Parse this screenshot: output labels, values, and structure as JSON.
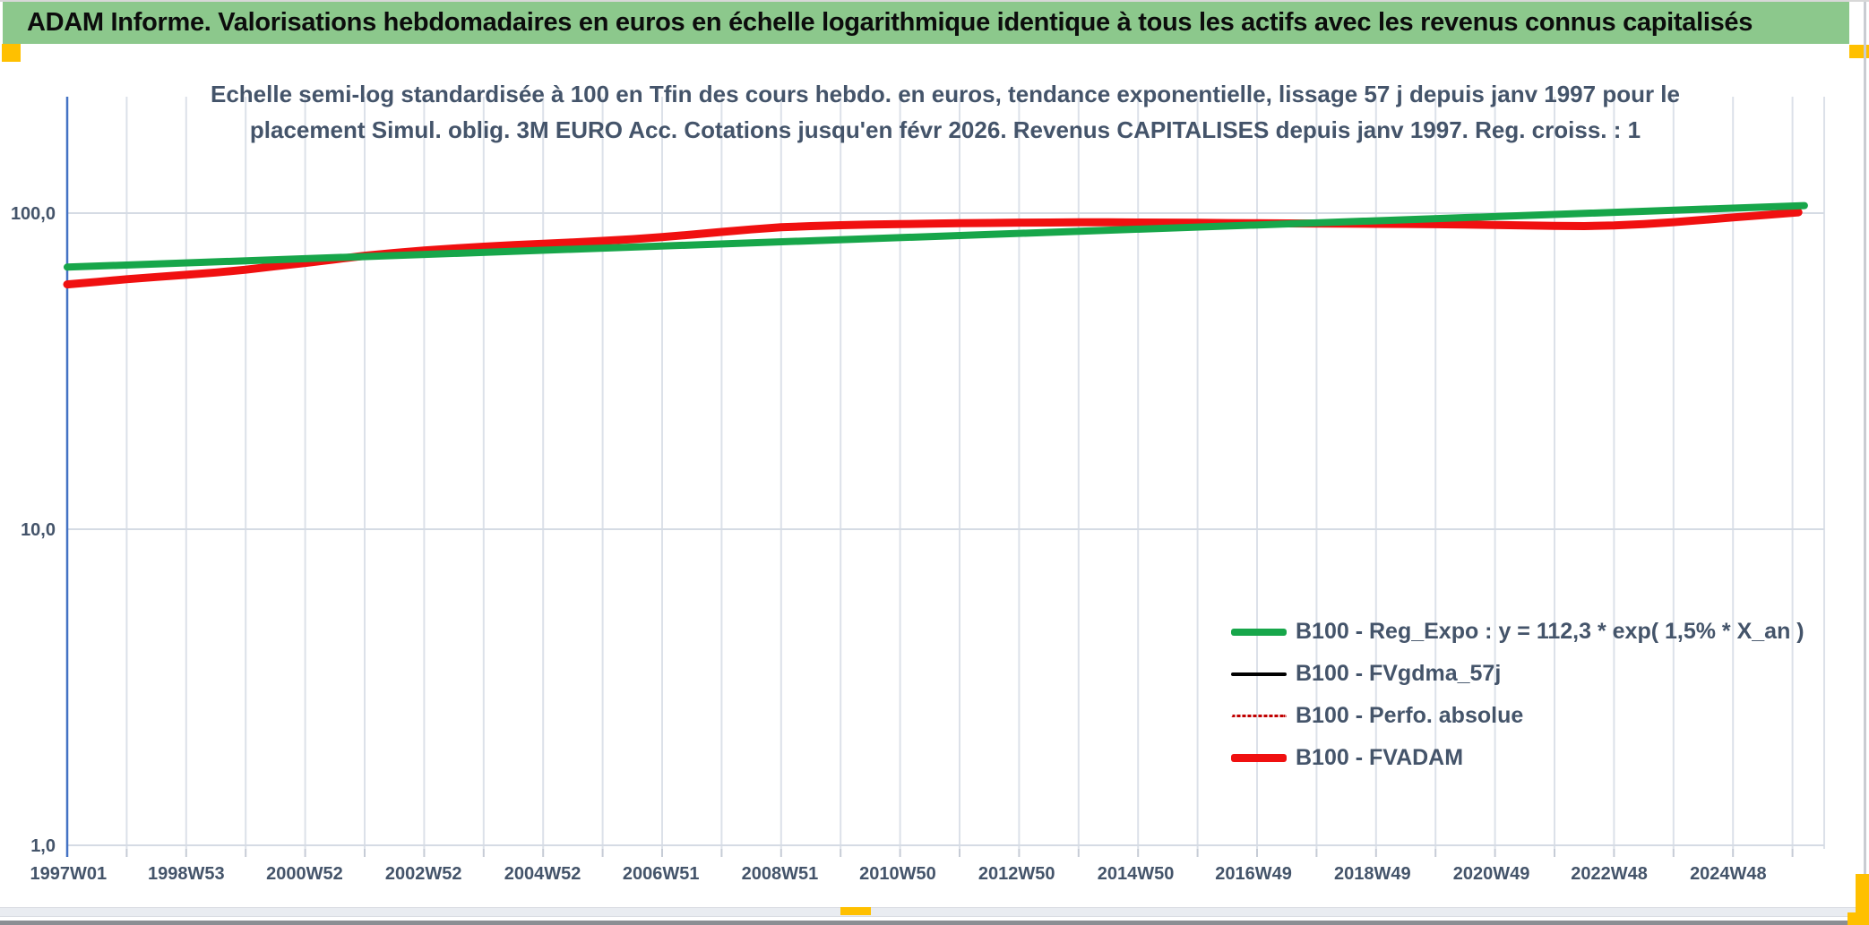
{
  "header": {
    "title": "ADAM Informe. Valorisations hebdomadaires en euros en échelle logarithmique identique à tous les actifs avec les revenus connus capitalisés",
    "background_color": "#8cc88c",
    "accent_color": "#ffc000"
  },
  "chart": {
    "title_line1": "Echelle semi-log standardisée à 100 en Tfin des cours hebdo. en euros, tendance exponentielle, lissage 57 j depuis janv 1997 pour le",
    "title_line2": "placement Simul. oblig. 3M EURO Acc. Cotations jusqu'en févr 2026. Revenus CAPITALISES depuis janv 1997. Reg. croiss. : 1",
    "text_color": "#44546a",
    "axis_color": "#4472c4",
    "gridline_color": "#dce1e9"
  },
  "chart_data": {
    "type": "line",
    "title": "Echelle semi-log standardisée à 100 en Tfin des cours hebdo. en euros",
    "xlabel": "",
    "ylabel": "",
    "y_axis": {
      "scale": "log",
      "ticks": [
        {
          "label": "100,0",
          "value": 100
        },
        {
          "label": "10,0",
          "value": 10
        },
        {
          "label": "1,0",
          "value": 1
        }
      ],
      "range": [
        1,
        233
      ]
    },
    "x_axis": {
      "range_years": [
        1997.0,
        2026.55
      ],
      "gridline_every_years": 1,
      "ticks": [
        {
          "label": "1997W01",
          "year": 1997.02
        },
        {
          "label": "1998W53",
          "year": 1999.0
        },
        {
          "label": "2000W52",
          "year": 2000.99
        },
        {
          "label": "2002W52",
          "year": 2002.99
        },
        {
          "label": "2004W52",
          "year": 2004.99
        },
        {
          "label": "2006W51",
          "year": 2006.98
        },
        {
          "label": "2008W51",
          "year": 2008.98
        },
        {
          "label": "2010W50",
          "year": 2010.96
        },
        {
          "label": "2012W50",
          "year": 2012.96
        },
        {
          "label": "2014W50",
          "year": 2014.96
        },
        {
          "label": "2016W49",
          "year": 2016.94
        },
        {
          "label": "2018W49",
          "year": 2018.94
        },
        {
          "label": "2020W49",
          "year": 2020.94
        },
        {
          "label": "2022W48",
          "year": 2022.92
        },
        {
          "label": "2024W48",
          "year": 2024.92
        }
      ]
    },
    "legend_position": "inside-bottom-right",
    "grid": true,
    "series": [
      {
        "name": "B100 - Reg_Expo : y = 112,3 * exp( 1,5% *  X_an )",
        "color": "#17a64a",
        "width": 8,
        "style": "solid",
        "sample_height": 8,
        "points": [
          [
            1997.0,
            67.5
          ],
          [
            2026.2,
            105.6
          ]
        ]
      },
      {
        "name": "B100 - FVgdma_57j",
        "color": "#000000",
        "width": 3.5,
        "style": "solid",
        "sample_height": 4,
        "points": [
          [
            1997.0,
            59.5
          ],
          [
            1998,
            61.8
          ],
          [
            1999,
            63.8
          ],
          [
            2000,
            66.2
          ],
          [
            2000.5,
            67.9
          ],
          [
            2001,
            69.6
          ],
          [
            2001.5,
            71.4
          ],
          [
            2002,
            73.3
          ],
          [
            2002.5,
            74.8
          ],
          [
            2003,
            76.2
          ],
          [
            2003.5,
            77.3
          ],
          [
            2004,
            78.3
          ],
          [
            2004.5,
            79.2
          ],
          [
            2005,
            80.0
          ],
          [
            2005.5,
            80.8
          ],
          [
            2006,
            81.7
          ],
          [
            2006.5,
            82.7
          ],
          [
            2007,
            84.0
          ],
          [
            2007.5,
            85.5
          ],
          [
            2008,
            87.2
          ],
          [
            2008.5,
            88.8
          ],
          [
            2009,
            90.2
          ],
          [
            2009.5,
            91.0
          ],
          [
            2010,
            91.6
          ],
          [
            2010.5,
            92.0
          ],
          [
            2011,
            92.3
          ],
          [
            2012,
            92.9
          ],
          [
            2013,
            93.3
          ],
          [
            2014,
            93.5
          ],
          [
            2015,
            93.4
          ],
          [
            2016,
            93.2
          ],
          [
            2017,
            92.9
          ],
          [
            2018,
            92.7
          ],
          [
            2019,
            92.5
          ],
          [
            2020,
            92.2
          ],
          [
            2020.5,
            92.0
          ],
          [
            2021,
            91.7
          ],
          [
            2021.5,
            91.4
          ],
          [
            2022,
            91.1
          ],
          [
            2022.5,
            91.0
          ],
          [
            2023,
            91.4
          ],
          [
            2023.5,
            92.3
          ],
          [
            2024,
            93.6
          ],
          [
            2024.5,
            95.2
          ],
          [
            2025,
            96.9
          ],
          [
            2025.5,
            98.5
          ],
          [
            2026.1,
            100.6
          ]
        ]
      },
      {
        "name": "B100 - Perfo. absolue",
        "color": "#c00000",
        "width": 2.5,
        "style": "dotted",
        "sample_height": 3,
        "points": [
          [
            1997.0,
            59.5
          ],
          [
            1998,
            61.8
          ],
          [
            1999,
            63.8
          ],
          [
            2000,
            66.2
          ],
          [
            2000.5,
            67.9
          ],
          [
            2001,
            69.6
          ],
          [
            2001.5,
            71.4
          ],
          [
            2002,
            73.3
          ],
          [
            2002.5,
            74.8
          ],
          [
            2003,
            76.2
          ],
          [
            2003.5,
            77.3
          ],
          [
            2004,
            78.3
          ],
          [
            2004.5,
            79.2
          ],
          [
            2005,
            80.0
          ],
          [
            2005.5,
            80.8
          ],
          [
            2006,
            81.7
          ],
          [
            2006.5,
            82.7
          ],
          [
            2007,
            84.0
          ],
          [
            2007.5,
            85.5
          ],
          [
            2008,
            87.2
          ],
          [
            2008.5,
            88.8
          ],
          [
            2009,
            90.2
          ],
          [
            2009.5,
            91.0
          ],
          [
            2010,
            91.6
          ],
          [
            2010.5,
            92.0
          ],
          [
            2011,
            92.3
          ],
          [
            2012,
            92.9
          ],
          [
            2013,
            93.3
          ],
          [
            2014,
            93.5
          ],
          [
            2015,
            93.4
          ],
          [
            2016,
            93.2
          ],
          [
            2017,
            92.9
          ],
          [
            2018,
            92.7
          ],
          [
            2019,
            92.5
          ],
          [
            2020,
            92.2
          ],
          [
            2020.5,
            92.0
          ],
          [
            2021,
            91.7
          ],
          [
            2021.5,
            91.4
          ],
          [
            2022,
            91.1
          ],
          [
            2022.5,
            91.0
          ],
          [
            2023,
            91.4
          ],
          [
            2023.5,
            92.3
          ],
          [
            2024,
            93.6
          ],
          [
            2024.5,
            95.2
          ],
          [
            2025,
            96.9
          ],
          [
            2025.5,
            98.5
          ],
          [
            2026.1,
            100.6
          ]
        ]
      },
      {
        "name": "B100 - FVADAM",
        "color": "#f01010",
        "width": 9,
        "style": "solid",
        "sample_height": 9,
        "points": [
          [
            1997.0,
            59.5
          ],
          [
            1997.5,
            60.6
          ],
          [
            1998,
            61.8
          ],
          [
            1998.5,
            62.8
          ],
          [
            1999,
            63.8
          ],
          [
            1999.5,
            64.9
          ],
          [
            2000,
            66.2
          ],
          [
            2000.5,
            67.9
          ],
          [
            2001,
            69.6
          ],
          [
            2001.5,
            71.4
          ],
          [
            2002,
            73.3
          ],
          [
            2002.5,
            74.8
          ],
          [
            2003,
            76.2
          ],
          [
            2003.5,
            77.3
          ],
          [
            2004,
            78.3
          ],
          [
            2004.5,
            79.2
          ],
          [
            2005,
            80.0
          ],
          [
            2005.5,
            80.8
          ],
          [
            2006,
            81.7
          ],
          [
            2006.5,
            82.7
          ],
          [
            2007,
            84.0
          ],
          [
            2007.5,
            85.5
          ],
          [
            2008,
            87.2
          ],
          [
            2008.5,
            88.8
          ],
          [
            2009,
            90.2
          ],
          [
            2009.5,
            91.0
          ],
          [
            2010,
            91.6
          ],
          [
            2010.5,
            92.0
          ],
          [
            2011,
            92.3
          ],
          [
            2011.5,
            92.6
          ],
          [
            2012,
            92.9
          ],
          [
            2012.5,
            93.1
          ],
          [
            2013,
            93.3
          ],
          [
            2013.5,
            93.4
          ],
          [
            2014,
            93.5
          ],
          [
            2014.5,
            93.5
          ],
          [
            2015,
            93.4
          ],
          [
            2015.5,
            93.3
          ],
          [
            2016,
            93.2
          ],
          [
            2016.5,
            93.0
          ],
          [
            2017,
            92.9
          ],
          [
            2017.5,
            92.8
          ],
          [
            2018,
            92.7
          ],
          [
            2018.5,
            92.6
          ],
          [
            2019,
            92.5
          ],
          [
            2019.5,
            92.4
          ],
          [
            2020,
            92.2
          ],
          [
            2020.5,
            92.0
          ],
          [
            2021,
            91.7
          ],
          [
            2021.5,
            91.4
          ],
          [
            2022,
            91.1
          ],
          [
            2022.5,
            91.0
          ],
          [
            2023,
            91.4
          ],
          [
            2023.5,
            92.3
          ],
          [
            2024,
            93.6
          ],
          [
            2024.5,
            95.2
          ],
          [
            2025,
            96.9
          ],
          [
            2025.5,
            98.5
          ],
          [
            2026.1,
            100.6
          ]
        ]
      }
    ]
  }
}
